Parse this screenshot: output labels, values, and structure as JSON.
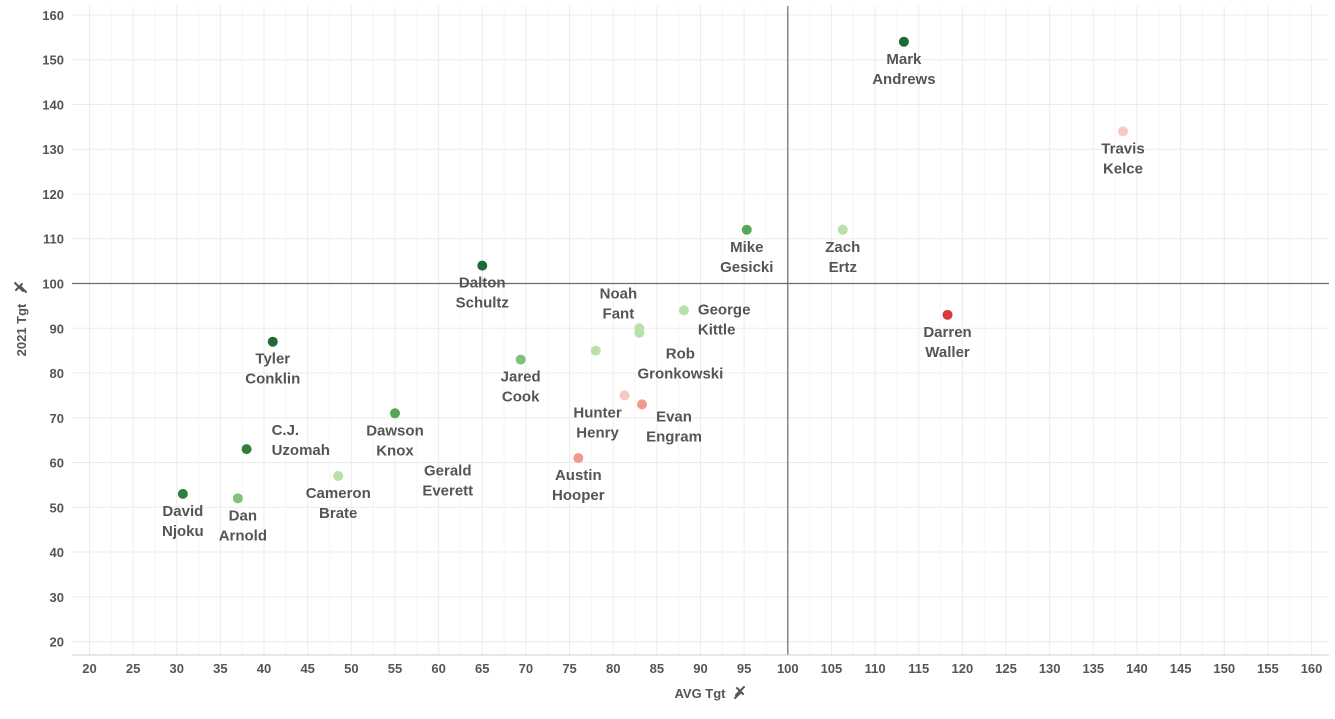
{
  "chart_data": {
    "type": "scatter",
    "xlabel": "AVG Tgt",
    "ylabel": "2021 Tgt",
    "axis_icon": "pin-icon",
    "xlim": [
      18,
      162
    ],
    "ylim": [
      17,
      162
    ],
    "x_ticks": [
      20,
      25,
      30,
      35,
      40,
      45,
      50,
      55,
      60,
      65,
      70,
      75,
      80,
      85,
      90,
      95,
      100,
      105,
      110,
      115,
      120,
      125,
      130,
      135,
      140,
      145,
      150,
      155,
      160
    ],
    "y_ticks": [
      20,
      30,
      40,
      50,
      60,
      70,
      80,
      90,
      100,
      110,
      120,
      130,
      140,
      150,
      160
    ],
    "reference_lines": {
      "x": 100,
      "y": 100
    },
    "grid": true,
    "points": [
      {
        "name": "Mark Andrews",
        "lines": [
          "Mark",
          "Andrews"
        ],
        "x": 113.3,
        "y": 154,
        "color": "#1e6b37",
        "label_dx": 0,
        "label_dy": 1
      },
      {
        "name": "Travis Kelce",
        "lines": [
          "Travis",
          "Kelce"
        ],
        "x": 138.4,
        "y": 134,
        "color": "#f9c8c5",
        "label_dx": 0,
        "label_dy": 1
      },
      {
        "name": "Mike Gesicki",
        "lines": [
          "Mike",
          "Gesicki"
        ],
        "x": 95.3,
        "y": 112,
        "color": "#5aa659",
        "label_dx": 0,
        "label_dy": 1
      },
      {
        "name": "Zach Ertz",
        "lines": [
          "Zach",
          "Ertz"
        ],
        "x": 106.3,
        "y": 112,
        "color": "#b8e0a8",
        "label_dx": 0,
        "label_dy": 1
      },
      {
        "name": "Dalton Schultz",
        "lines": [
          "Dalton",
          "Schultz"
        ],
        "x": 65,
        "y": 104,
        "color": "#1e6b37",
        "label_dx": 0,
        "label_dy": 1
      },
      {
        "name": "Darren Waller",
        "lines": [
          "Darren",
          "Waller"
        ],
        "x": 118.3,
        "y": 93,
        "color": "#d93a40",
        "label_dx": 0,
        "label_dy": 1
      },
      {
        "name": "George Kittle",
        "lines": [
          "George",
          "Kittle"
        ],
        "x": 88.1,
        "y": 94,
        "color": "#b8e0a8",
        "label_dx": 1,
        "label_dy": 0
      },
      {
        "name": "Noah Fant",
        "lines": [
          "Noah",
          "Fant"
        ],
        "x": 83,
        "y": 90,
        "color": "#b8e0a8",
        "label_dx": -1,
        "label_dy": -1
      },
      {
        "name": "Rob Gronkowski",
        "lines": [
          "Rob",
          "Gronkowski"
        ],
        "x": 83,
        "y": 89,
        "color": "#b8e0a8",
        "label_dx": 0,
        "label_dy": 1
      },
      {
        "name": "Tyler Conklin",
        "lines": [
          "Tyler",
          "Conklin"
        ],
        "x": 41,
        "y": 87,
        "color": "#1e6b37",
        "label_dx": 0,
        "label_dy": 1
      },
      {
        "name": "Jared Cook",
        "lines": [
          "Jared",
          "Cook"
        ],
        "x": 69.4,
        "y": 83,
        "color": "#7ec27c",
        "label_dx": 0,
        "label_dy": 1
      },
      {
        "name": "Gerald Everett",
        "lines": [
          "Gerald",
          "Everett"
        ],
        "x": 78,
        "y": 85,
        "color": "#b8e0a8",
        "label_dx": 0,
        "label_dy": 1
      },
      {
        "name": "Hunter Henry",
        "lines": [
          "Hunter",
          "Henry"
        ],
        "x": 81.3,
        "y": 75,
        "color": "#f9c8c5",
        "label_dx": -1,
        "label_dy": 1
      },
      {
        "name": "Evan Engram",
        "lines": [
          "Evan",
          "Engram"
        ],
        "x": 83.3,
        "y": 73,
        "color": "#f19a8e",
        "label_dx": 0,
        "label_dy": 1
      },
      {
        "name": "Dawson Knox",
        "lines": [
          "Dawson",
          "Knox"
        ],
        "x": 55,
        "y": 71,
        "color": "#5aa659",
        "label_dx": 0,
        "label_dy": 1
      },
      {
        "name": "C.J. Uzomah",
        "lines": [
          "C.J.",
          "Uzomah"
        ],
        "x": 38,
        "y": 63,
        "color": "#2f7d3f",
        "label_dx": 1,
        "label_dy": 0
      },
      {
        "name": "Austin Hooper",
        "lines": [
          "Austin",
          "Hooper"
        ],
        "x": 76,
        "y": 61,
        "color": "#f19a8e",
        "label_dx": 0,
        "label_dy": 1
      },
      {
        "name": "Cameron Brate",
        "lines": [
          "Cameron",
          "Brate"
        ],
        "x": 48.5,
        "y": 57,
        "color": "#b8e0a8",
        "label_dx": 0,
        "label_dy": 1
      },
      {
        "name": "David Njoku",
        "lines": [
          "David",
          "Njoku"
        ],
        "x": 30.7,
        "y": 53,
        "color": "#2f7d3f",
        "label_dx": 0,
        "label_dy": 1
      },
      {
        "name": "Dan Arnold",
        "lines": [
          "Dan",
          "Arnold"
        ],
        "x": 37,
        "y": 52,
        "color": "#7ec27c",
        "label_dx": 0,
        "label_dy": 1
      }
    ]
  }
}
